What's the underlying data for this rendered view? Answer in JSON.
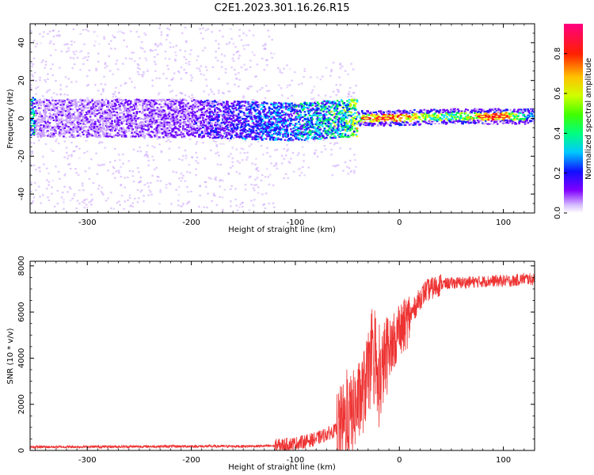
{
  "title": "C2E1.2023.301.16.26.R15",
  "chart_data": [
    {
      "type": "heatmap",
      "xlabel": "Height of straight line (km)",
      "ylabel": "Frequency (Hz)",
      "xlim": [
        -355,
        130
      ],
      "ylim": [
        -50,
        50
      ],
      "xticks": [
        -300,
        -200,
        -100,
        0,
        100
      ],
      "xtick_labels": [
        "-300",
        "-200",
        "-100",
        "0",
        "100"
      ],
      "yticks": [
        -40,
        -20,
        0,
        20,
        40
      ],
      "ytick_labels": [
        "-40",
        "-20",
        "0",
        "20",
        "40"
      ],
      "colorbar": {
        "label": "Normalized spectral amplitude",
        "range": [
          0,
          0.95
        ],
        "ticks": [
          0,
          0.2,
          0.4,
          0.6,
          0.8
        ],
        "tick_labels": [
          "0.0",
          "0.2",
          "0.4",
          "0.6",
          "0.8"
        ],
        "colors": [
          "#ffffff",
          "#c9a0ff",
          "#6a00ff",
          "#0020ff",
          "#00e0ff",
          "#00ff40",
          "#c0ff00",
          "#ffff00",
          "#ff8000",
          "#ff0000",
          "#ff0090"
        ]
      },
      "description_points": [
        {
          "x": -350,
          "y": 0,
          "v": 0.15
        },
        {
          "x": -200,
          "y": 0,
          "v": 0.2
        },
        {
          "x": -100,
          "y": -2,
          "v": 0.35
        },
        {
          "x": -50,
          "y": 0,
          "v": 0.45
        },
        {
          "x": -15,
          "y": 0,
          "v": 0.9
        },
        {
          "x": 50,
          "y": 1,
          "v": 0.5
        },
        {
          "x": 95,
          "y": 1,
          "v": 0.9
        },
        {
          "x": 125,
          "y": 1,
          "v": 0.4
        }
      ]
    },
    {
      "type": "line",
      "xlabel": "Height of straight line (km)",
      "ylabel": "SNR (10 * v/v)",
      "xlim": [
        -355,
        130
      ],
      "ylim": [
        0,
        8200
      ],
      "xticks": [
        -300,
        -200,
        -100,
        0,
        100
      ],
      "xtick_labels": [
        "-300",
        "-200",
        "-100",
        "0",
        "100"
      ],
      "yticks": [
        0,
        2000,
        4000,
        6000,
        8000
      ],
      "ytick_labels": [
        "0",
        "2000",
        "4000",
        "6000",
        "8000"
      ],
      "color": "#ee3333",
      "series": [
        {
          "name": "SNR",
          "x": [
            -355,
            -300,
            -250,
            -200,
            -150,
            -120,
            -100,
            -80,
            -60,
            -50,
            -40,
            -35,
            -30,
            -25,
            -20,
            -15,
            -10,
            -5,
            0,
            5,
            10,
            15,
            20,
            25,
            30,
            40,
            50,
            70,
            90,
            110,
            120,
            130
          ],
          "y": [
            150,
            160,
            170,
            180,
            180,
            200,
            300,
            500,
            900,
            1300,
            2000,
            2500,
            3300,
            3800,
            2600,
            3800,
            4400,
            4800,
            5000,
            5400,
            5800,
            6200,
            6600,
            6900,
            7000,
            7200,
            7250,
            7300,
            7350,
            7350,
            7450,
            7400
          ]
        }
      ]
    }
  ]
}
